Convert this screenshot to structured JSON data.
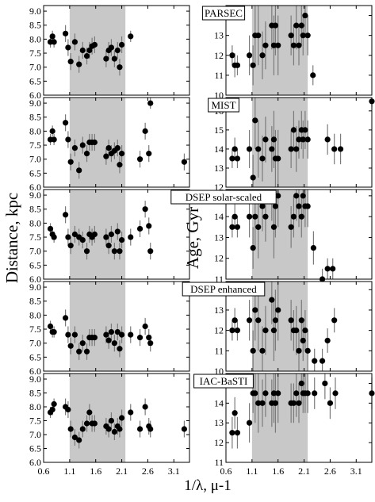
{
  "figure": {
    "ylabel_left": "Distance, kpc",
    "ylabel_right": "Age, Gyr",
    "xlabel": "1/λ, μ-1",
    "x_ticks": [
      "0.6",
      "1.1",
      "1.6",
      "2.1",
      "2.6",
      "3.1"
    ]
  },
  "chart_data": [
    {
      "type": "scatter",
      "panel": "PARSEC",
      "quantity": "distance",
      "xlim": [
        0.6,
        3.4
      ],
      "ylim": [
        6.0,
        9.2
      ],
      "yticks": [
        "6.0",
        "6.5",
        "7.0",
        "7.5",
        "8.0",
        "8.5",
        "9.0"
      ],
      "shaded_band": [
        1.1,
        2.17
      ],
      "grid": false,
      "x": [
        0.73,
        0.77,
        0.8,
        1.02,
        1.07,
        1.12,
        1.2,
        1.28,
        1.35,
        1.43,
        1.48,
        1.53,
        1.58,
        1.8,
        1.85,
        1.9,
        1.96,
        2.02,
        2.06,
        2.1,
        2.27
      ],
      "y": [
        7.9,
        8.1,
        7.9,
        8.2,
        7.7,
        7.2,
        7.9,
        7.1,
        7.6,
        7.4,
        7.6,
        7.75,
        7.8,
        7.3,
        7.6,
        7.7,
        7.3,
        7.6,
        7.0,
        7.8,
        8.1
      ],
      "err": [
        0.2,
        0.2,
        0.2,
        0.3,
        0.3,
        0.3,
        0.3,
        0.3,
        0.3,
        0.3,
        0.3,
        0.3,
        0.3,
        0.3,
        0.3,
        0.3,
        0.3,
        0.3,
        0.3,
        0.3,
        0.2
      ]
    },
    {
      "type": "scatter",
      "panel": "PARSEC",
      "quantity": "age",
      "xlim": [
        0.6,
        3.4
      ],
      "ylim": [
        10,
        14.5
      ],
      "yticks": [
        "10",
        "11",
        "12",
        "13",
        "14"
      ],
      "shaded_band": [
        1.1,
        2.17
      ],
      "grid": false,
      "x": [
        0.72,
        0.77,
        0.82,
        1.05,
        1.12,
        1.16,
        1.22,
        1.3,
        1.36,
        1.48,
        1.52,
        1.55,
        1.6,
        1.85,
        1.9,
        1.95,
        2.0,
        2.05,
        2.08,
        2.12,
        2.17,
        2.27
      ],
      "y": [
        12.0,
        11.5,
        11.5,
        12.0,
        11.5,
        13.0,
        13.0,
        12.0,
        12.5,
        13.5,
        12.5,
        13.5,
        12.5,
        13.0,
        12.5,
        13.5,
        12.5,
        13.5,
        13.0,
        14.0,
        13.0,
        11.0
      ],
      "err": [
        0.5,
        0.6,
        0.5,
        1.0,
        1.0,
        1.5,
        1.5,
        1.2,
        1.2,
        1.2,
        1.5,
        1.5,
        1.5,
        1.0,
        1.0,
        1.2,
        1.0,
        1.0,
        1.0,
        1.0,
        1.0,
        0.5
      ]
    },
    {
      "type": "scatter",
      "panel": "MIST",
      "quantity": "distance",
      "xlim": [
        0.6,
        3.4
      ],
      "ylim": [
        6.0,
        9.2
      ],
      "yticks": [
        "6.0",
        "6.5",
        "7.0",
        "7.5",
        "8.0",
        "8.5",
        "9.0"
      ],
      "shaded_band": [
        1.1,
        2.17
      ],
      "grid": false,
      "x": [
        0.73,
        0.77,
        0.8,
        1.02,
        1.07,
        1.12,
        1.2,
        1.28,
        1.35,
        1.43,
        1.48,
        1.53,
        1.58,
        1.8,
        1.85,
        1.9,
        1.96,
        2.02,
        2.06,
        2.1,
        2.45,
        2.55,
        2.62,
        2.65,
        3.3
      ],
      "y": [
        7.7,
        8.0,
        7.7,
        8.3,
        7.7,
        6.9,
        7.4,
        6.6,
        7.5,
        7.2,
        7.6,
        7.6,
        7.6,
        7.1,
        7.4,
        7.2,
        7.3,
        7.4,
        6.8,
        7.2,
        7.0,
        8.0,
        7.2,
        9.0,
        6.9
      ],
      "err": [
        0.2,
        0.2,
        0.2,
        0.3,
        0.3,
        0.3,
        0.3,
        0.3,
        0.3,
        0.3,
        0.3,
        0.3,
        0.3,
        0.3,
        0.3,
        0.3,
        0.3,
        0.3,
        0.3,
        0.3,
        0.3,
        0.3,
        0.3,
        0.2,
        0.3
      ]
    },
    {
      "type": "scatter",
      "panel": "MIST",
      "quantity": "age",
      "xlim": [
        0.6,
        3.4
      ],
      "ylim": [
        12,
        16.7
      ],
      "yticks": [
        "12",
        "13",
        "14",
        "15",
        "16"
      ],
      "shaded_band": [
        1.1,
        2.17
      ],
      "grid": false,
      "x": [
        0.72,
        0.77,
        0.82,
        1.05,
        1.12,
        1.16,
        1.22,
        1.3,
        1.36,
        1.48,
        1.52,
        1.55,
        1.6,
        1.85,
        1.9,
        1.95,
        2.0,
        2.05,
        2.08,
        2.12,
        2.17,
        2.55,
        2.68,
        2.8,
        3.4
      ],
      "y": [
        13.5,
        14.0,
        13.5,
        14.0,
        12.5,
        15.5,
        14.0,
        13.5,
        14.5,
        14.0,
        14.5,
        13.5,
        13.5,
        14.0,
        15.0,
        14.0,
        14.5,
        15.0,
        14.5,
        15.0,
        14.5,
        14.5,
        14.0,
        14.0,
        16.5
      ],
      "err": [
        0.5,
        0.6,
        0.5,
        1.0,
        1.2,
        1.5,
        1.5,
        1.2,
        1.2,
        1.2,
        1.5,
        1.5,
        1.5,
        1.0,
        1.0,
        1.2,
        1.0,
        1.0,
        1.0,
        1.0,
        1.0,
        0.8,
        0.8,
        0.8,
        0.3
      ]
    },
    {
      "type": "scatter",
      "panel": "DSEP solar-scaled",
      "quantity": "distance",
      "xlim": [
        0.6,
        3.4
      ],
      "ylim": [
        6.0,
        9.2
      ],
      "yticks": [
        "6.0",
        "6.5",
        "7.0",
        "7.5",
        "8.0",
        "8.5",
        "9.0"
      ],
      "shaded_band": [
        1.1,
        2.17
      ],
      "grid": false,
      "x": [
        0.73,
        0.77,
        0.8,
        1.02,
        1.07,
        1.12,
        1.2,
        1.28,
        1.35,
        1.43,
        1.48,
        1.53,
        1.58,
        1.8,
        1.85,
        1.9,
        1.96,
        2.02,
        2.06,
        2.1,
        2.27,
        2.45,
        2.55,
        2.62,
        2.65
      ],
      "y": [
        7.8,
        7.6,
        7.5,
        8.3,
        7.5,
        7.2,
        7.6,
        7.5,
        7.4,
        7.0,
        7.6,
        7.5,
        7.6,
        7.5,
        7.2,
        7.6,
        7.0,
        7.7,
        7.0,
        7.4,
        7.5,
        7.8,
        8.5,
        7.9,
        7.0
      ],
      "err": [
        0.2,
        0.2,
        0.2,
        0.3,
        0.3,
        0.3,
        0.3,
        0.3,
        0.3,
        0.3,
        0.3,
        0.3,
        0.3,
        0.3,
        0.3,
        0.3,
        0.3,
        0.3,
        0.3,
        0.3,
        0.3,
        0.3,
        0.3,
        0.3,
        0.3
      ]
    },
    {
      "type": "scatter",
      "panel": "DSEP solar-scaled",
      "quantity": "age",
      "xlim": [
        0.6,
        3.4
      ],
      "ylim": [
        11,
        15.3
      ],
      "yticks": [
        "11",
        "12",
        "13",
        "14",
        "15"
      ],
      "shaded_band": [
        1.1,
        2.17
      ],
      "grid": false,
      "x": [
        0.72,
        0.77,
        0.82,
        1.05,
        1.12,
        1.16,
        1.22,
        1.3,
        1.36,
        1.48,
        1.52,
        1.55,
        1.6,
        1.85,
        1.9,
        1.95,
        2.0,
        2.05,
        2.08,
        2.12,
        2.17,
        2.28,
        2.45,
        2.55,
        2.65
      ],
      "y": [
        13.5,
        14.0,
        13.5,
        14.0,
        12.5,
        14.0,
        13.5,
        14.5,
        14.0,
        15.0,
        13.5,
        14.5,
        15.0,
        13.5,
        14.0,
        15.0,
        14.5,
        14.0,
        15.0,
        14.5,
        14.5,
        12.5,
        11.0,
        11.5,
        11.5
      ],
      "err": [
        0.5,
        0.6,
        0.5,
        1.0,
        1.0,
        1.5,
        1.5,
        1.2,
        1.2,
        1.2,
        1.5,
        1.5,
        1.5,
        1.0,
        1.0,
        1.2,
        1.0,
        1.0,
        1.0,
        1.0,
        1.0,
        0.8,
        0.5,
        0.5,
        0.5
      ]
    },
    {
      "type": "scatter",
      "panel": "DSEP enhanced",
      "quantity": "distance",
      "xlim": [
        0.6,
        3.4
      ],
      "ylim": [
        6.0,
        9.2
      ],
      "yticks": [
        "6.0",
        "6.5",
        "7.0",
        "7.5",
        "8.0",
        "8.5",
        "9.0"
      ],
      "shaded_band": [
        1.1,
        2.17
      ],
      "grid": false,
      "x": [
        0.73,
        0.77,
        0.8,
        1.02,
        1.07,
        1.12,
        1.2,
        1.28,
        1.35,
        1.43,
        1.48,
        1.53,
        1.58,
        1.8,
        1.85,
        1.9,
        1.96,
        2.02,
        2.06,
        2.1,
        2.27,
        2.45,
        2.55,
        2.62,
        2.65
      ],
      "y": [
        7.6,
        7.4,
        7.4,
        7.9,
        7.3,
        6.9,
        7.3,
        6.7,
        7.0,
        6.7,
        7.2,
        7.2,
        7.2,
        7.3,
        7.1,
        7.4,
        7.0,
        7.4,
        6.8,
        7.3,
        7.3,
        7.2,
        7.6,
        7.2,
        7.0
      ],
      "err": [
        0.2,
        0.2,
        0.2,
        0.3,
        0.3,
        0.3,
        0.3,
        0.3,
        0.3,
        0.3,
        0.3,
        0.3,
        0.3,
        0.3,
        0.3,
        0.3,
        0.3,
        0.3,
        0.3,
        0.3,
        0.3,
        0.3,
        0.3,
        0.3,
        0.3
      ]
    },
    {
      "type": "scatter",
      "panel": "DSEP enhanced",
      "quantity": "age",
      "xlim": [
        0.6,
        3.4
      ],
      "ylim": [
        10,
        14.4
      ],
      "yticks": [
        "10",
        "11",
        "12",
        "13",
        "14"
      ],
      "shaded_band": [
        1.1,
        2.17
      ],
      "grid": false,
      "x": [
        0.72,
        0.77,
        0.82,
        1.05,
        1.12,
        1.16,
        1.22,
        1.3,
        1.36,
        1.48,
        1.52,
        1.55,
        1.6,
        1.85,
        1.9,
        1.95,
        2.0,
        2.05,
        2.08,
        2.12,
        2.17,
        2.3,
        2.45,
        2.55,
        2.68
      ],
      "y": [
        12.0,
        12.5,
        12.0,
        12.5,
        11.0,
        13.0,
        12.5,
        11.0,
        12.0,
        13.5,
        12.0,
        12.5,
        13.0,
        12.5,
        12.0,
        12.0,
        11.0,
        12.5,
        11.5,
        12.0,
        11.0,
        10.5,
        10.5,
        11.5,
        12.5
      ],
      "err": [
        0.5,
        0.6,
        0.5,
        1.0,
        1.0,
        1.5,
        1.5,
        1.2,
        1.2,
        1.2,
        1.5,
        1.5,
        1.5,
        1.0,
        1.0,
        1.2,
        1.0,
        1.0,
        1.0,
        1.0,
        1.0,
        0.6,
        0.6,
        0.6,
        0.6
      ]
    },
    {
      "type": "scatter",
      "panel": "IAC-BaSTI",
      "quantity": "distance",
      "xlim": [
        0.6,
        3.4
      ],
      "ylim": [
        6.0,
        9.2
      ],
      "yticks": [
        "6.0",
        "6.5",
        "7.0",
        "7.5",
        "8.0",
        "8.5",
        "9.0"
      ],
      "shaded_band": [
        1.1,
        2.17
      ],
      "grid": false,
      "x": [
        0.73,
        0.77,
        0.8,
        1.02,
        1.07,
        1.12,
        1.2,
        1.28,
        1.35,
        1.43,
        1.48,
        1.53,
        1.58,
        1.8,
        1.85,
        1.9,
        1.96,
        2.02,
        2.06,
        2.1,
        2.27,
        2.45,
        2.55,
        2.62,
        2.65,
        3.3
      ],
      "y": [
        7.8,
        7.9,
        8.1,
        8.0,
        7.9,
        7.2,
        6.9,
        6.8,
        7.2,
        7.4,
        7.8,
        7.4,
        7.4,
        7.3,
        7.2,
        7.5,
        7.1,
        7.3,
        7.2,
        7.6,
        7.8,
        7.2,
        8.0,
        7.3,
        7.2,
        7.2
      ],
      "err": [
        0.2,
        0.2,
        0.2,
        0.3,
        0.3,
        0.3,
        0.3,
        0.3,
        0.3,
        0.3,
        0.3,
        0.3,
        0.3,
        0.3,
        0.3,
        0.3,
        0.3,
        0.3,
        0.3,
        0.3,
        0.3,
        0.3,
        0.3,
        0.3,
        0.3,
        0.3
      ]
    },
    {
      "type": "scatter",
      "panel": "IAC-BaSTI",
      "quantity": "age",
      "xlim": [
        0.6,
        3.4
      ],
      "ylim": [
        11,
        15.5
      ],
      "yticks": [
        "11",
        "12",
        "13",
        "14",
        "15"
      ],
      "shaded_band": [
        1.1,
        2.17
      ],
      "grid": false,
      "x": [
        0.72,
        0.77,
        0.82,
        1.05,
        1.12,
        1.16,
        1.22,
        1.3,
        1.36,
        1.48,
        1.52,
        1.55,
        1.6,
        1.85,
        1.9,
        1.95,
        2.0,
        2.05,
        2.08,
        2.12,
        2.17,
        2.3,
        2.5,
        2.6,
        2.7,
        3.4
      ],
      "y": [
        12.5,
        13.5,
        12.5,
        13.0,
        14.5,
        14.5,
        14.0,
        14.0,
        14.5,
        14.0,
        14.5,
        14.0,
        14.5,
        14.0,
        14.0,
        14.5,
        14.0,
        15.0,
        14.5,
        14.5,
        14.5,
        14.5,
        15.0,
        14.0,
        14.5,
        14.5
      ],
      "err": [
        0.8,
        0.8,
        0.8,
        1.0,
        1.0,
        1.5,
        1.5,
        1.2,
        1.2,
        1.2,
        1.5,
        1.5,
        1.5,
        1.0,
        1.0,
        1.2,
        1.0,
        1.0,
        1.0,
        1.0,
        1.0,
        0.8,
        0.8,
        0.8,
        0.8,
        0.8
      ]
    }
  ]
}
